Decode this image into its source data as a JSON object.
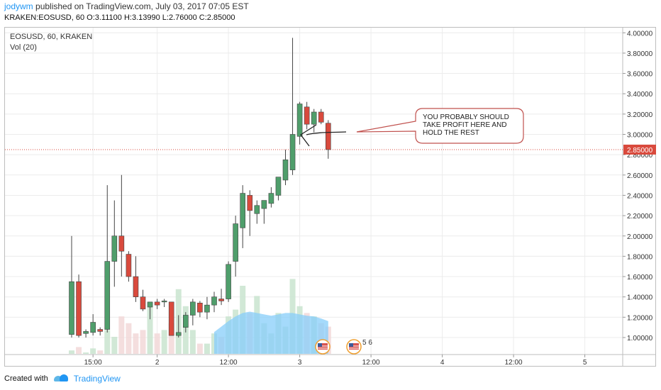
{
  "header": {
    "author": "jodywm",
    "published": " published on TradingView.com, July 03, 2017 07:05 EST",
    "ohlc": "KRAKEN:EOSUSD, 60  O:3.11100 H:3.13990 L:2.76000 C:2.85000"
  },
  "legend": {
    "symbol": "EOSUSD, 60, KRAKEN",
    "volume": "Vol (20)"
  },
  "annotation": {
    "text": "YOU PROBABLY SHOULD TAKE PROFIT HERE AND HOLD THE REST"
  },
  "events": {
    "count_label": "5 6"
  },
  "footer": {
    "created_with": "Created with",
    "brand": "TradingView"
  },
  "colors": {
    "up": "#4f9e6b",
    "down": "#d94a3d",
    "vol_up": "#c9e4cf",
    "vol_down": "#f2d8d8",
    "vol_ma": "#87cefa",
    "last_price_line": "#d94a3d",
    "callout_border": "#c0504d"
  },
  "chart_data": {
    "type": "candlestick",
    "y_ticks": [
      "4.00000",
      "3.80000",
      "3.60000",
      "3.40000",
      "3.20000",
      "3.00000",
      "2.80000",
      "2.60000",
      "2.40000",
      "2.20000",
      "2.00000",
      "1.80000",
      "1.60000",
      "1.40000",
      "1.20000",
      "1.00000"
    ],
    "ylim": [
      0.9,
      4.05
    ],
    "last_price": 2.85,
    "last_price_label": "2.85000",
    "x_ticks": [
      {
        "label": "15:00",
        "t": 3
      },
      {
        "label": "2",
        "t": 12
      },
      {
        "label": "12:00",
        "t": 22
      },
      {
        "label": "3",
        "t": 32
      },
      {
        "label": "12:00",
        "t": 42
      },
      {
        "label": "4",
        "t": 52
      },
      {
        "label": "12:00",
        "t": 62
      },
      {
        "label": "5",
        "t": 72
      }
    ],
    "candles": [
      {
        "t": 0,
        "o": 1.03,
        "h": 2.0,
        "l": 1.0,
        "c": 1.55
      },
      {
        "t": 1,
        "o": 1.55,
        "h": 1.62,
        "l": 1.0,
        "c": 1.02
      },
      {
        "t": 2,
        "o": 1.04,
        "h": 1.08,
        "l": 1.0,
        "c": 1.06
      },
      {
        "t": 3,
        "o": 1.05,
        "h": 1.23,
        "l": 1.02,
        "c": 1.15
      },
      {
        "t": 4,
        "o": 1.08,
        "h": 1.1,
        "l": 1.02,
        "c": 1.06
      },
      {
        "t": 5,
        "o": 1.08,
        "h": 2.5,
        "l": 1.05,
        "c": 1.75
      },
      {
        "t": 6,
        "o": 1.75,
        "h": 2.35,
        "l": 1.5,
        "c": 2.0
      },
      {
        "t": 7,
        "o": 2.0,
        "h": 2.6,
        "l": 1.6,
        "c": 1.85
      },
      {
        "t": 8,
        "o": 1.82,
        "h": 1.85,
        "l": 1.55,
        "c": 1.6
      },
      {
        "t": 9,
        "o": 1.6,
        "h": 1.8,
        "l": 1.35,
        "c": 1.4
      },
      {
        "t": 10,
        "o": 1.4,
        "h": 1.47,
        "l": 1.26,
        "c": 1.28
      },
      {
        "t": 11,
        "o": 1.3,
        "h": 1.35,
        "l": 1.18,
        "c": 1.35
      },
      {
        "t": 12,
        "o": 1.35,
        "h": 1.38,
        "l": 1.28,
        "c": 1.32
      },
      {
        "t": 13,
        "o": 1.35,
        "h": 1.38,
        "l": 1.3,
        "c": 1.36
      },
      {
        "t": 14,
        "o": 1.35,
        "h": 1.35,
        "l": 1.02,
        "c": 1.02
      },
      {
        "t": 15,
        "o": 1.02,
        "h": 1.22,
        "l": 1.0,
        "c": 1.05
      },
      {
        "t": 16,
        "o": 1.1,
        "h": 1.25,
        "l": 1.05,
        "c": 1.22
      },
      {
        "t": 17,
        "o": 1.22,
        "h": 1.38,
        "l": 1.12,
        "c": 1.35
      },
      {
        "t": 18,
        "o": 1.34,
        "h": 1.36,
        "l": 1.2,
        "c": 1.25
      },
      {
        "t": 19,
        "o": 1.25,
        "h": 1.4,
        "l": 1.18,
        "c": 1.32
      },
      {
        "t": 20,
        "o": 1.32,
        "h": 1.45,
        "l": 1.25,
        "c": 1.4
      },
      {
        "t": 21,
        "o": 1.38,
        "h": 1.48,
        "l": 1.32,
        "c": 1.36
      },
      {
        "t": 22,
        "o": 1.38,
        "h": 1.75,
        "l": 1.35,
        "c": 1.72
      },
      {
        "t": 23,
        "o": 1.75,
        "h": 2.2,
        "l": 1.6,
        "c": 2.12
      },
      {
        "t": 24,
        "o": 2.08,
        "h": 2.5,
        "l": 1.88,
        "c": 2.42
      },
      {
        "t": 25,
        "o": 2.4,
        "h": 2.45,
        "l": 2.0,
        "c": 2.25
      },
      {
        "t": 26,
        "o": 2.22,
        "h": 2.35,
        "l": 2.12,
        "c": 2.3
      },
      {
        "t": 27,
        "o": 2.27,
        "h": 2.33,
        "l": 2.12,
        "c": 2.35
      },
      {
        "t": 28,
        "o": 2.32,
        "h": 2.48,
        "l": 2.28,
        "c": 2.42
      },
      {
        "t": 29,
        "o": 2.4,
        "h": 2.55,
        "l": 2.35,
        "c": 2.58
      },
      {
        "t": 30,
        "o": 2.55,
        "h": 2.85,
        "l": 2.5,
        "c": 2.75
      },
      {
        "t": 31,
        "o": 2.65,
        "h": 3.95,
        "l": 2.6,
        "c": 3.0
      },
      {
        "t": 32,
        "o": 2.98,
        "h": 3.32,
        "l": 2.9,
        "c": 3.3
      },
      {
        "t": 33,
        "o": 3.27,
        "h": 3.32,
        "l": 3.05,
        "c": 3.1
      },
      {
        "t": 34,
        "o": 3.1,
        "h": 3.25,
        "l": 3.02,
        "c": 3.22
      },
      {
        "t": 35,
        "o": 3.22,
        "h": 3.25,
        "l": 3.1,
        "c": 3.12
      },
      {
        "t": 36,
        "o": 3.11,
        "h": 3.14,
        "l": 2.76,
        "c": 2.85
      }
    ],
    "volume": [
      {
        "t": 0,
        "v": 0.05,
        "up": true
      },
      {
        "t": 1,
        "v": 0.1,
        "up": false
      },
      {
        "t": 2,
        "v": 0.02,
        "up": true
      },
      {
        "t": 3,
        "v": 0.08,
        "up": true
      },
      {
        "t": 4,
        "v": 0.05,
        "up": false
      },
      {
        "t": 5,
        "v": 0.35,
        "up": true
      },
      {
        "t": 6,
        "v": 0.25,
        "up": true
      },
      {
        "t": 7,
        "v": 0.55,
        "up": false
      },
      {
        "t": 8,
        "v": 0.45,
        "up": false
      },
      {
        "t": 9,
        "v": 0.3,
        "up": false
      },
      {
        "t": 10,
        "v": 0.35,
        "up": false
      },
      {
        "t": 11,
        "v": 0.75,
        "up": true
      },
      {
        "t": 12,
        "v": 0.3,
        "up": false
      },
      {
        "t": 13,
        "v": 0.35,
        "up": true
      },
      {
        "t": 14,
        "v": 0.45,
        "up": false
      },
      {
        "t": 15,
        "v": 0.95,
        "up": true
      },
      {
        "t": 16,
        "v": 0.7,
        "up": true
      },
      {
        "t": 17,
        "v": 0.35,
        "up": true
      },
      {
        "t": 18,
        "v": 0.15,
        "up": false
      },
      {
        "t": 19,
        "v": 0.15,
        "up": true
      },
      {
        "t": 20,
        "v": 0.3,
        "up": true
      },
      {
        "t": 21,
        "v": 0.25,
        "up": false
      },
      {
        "t": 22,
        "v": 0.55,
        "up": true
      },
      {
        "t": 23,
        "v": 0.65,
        "up": true
      },
      {
        "t": 24,
        "v": 1.0,
        "up": true
      },
      {
        "t": 25,
        "v": 0.6,
        "up": false
      },
      {
        "t": 26,
        "v": 0.85,
        "up": true
      },
      {
        "t": 27,
        "v": 0.45,
        "up": true
      },
      {
        "t": 28,
        "v": 0.3,
        "up": true
      },
      {
        "t": 29,
        "v": 0.6,
        "up": true
      },
      {
        "t": 30,
        "v": 0.4,
        "up": true
      },
      {
        "t": 31,
        "v": 1.1,
        "up": true
      },
      {
        "t": 32,
        "v": 0.7,
        "up": true
      },
      {
        "t": 33,
        "v": 0.6,
        "up": false
      },
      {
        "t": 34,
        "v": 0.55,
        "up": true
      },
      {
        "t": 35,
        "v": 0.45,
        "up": false
      },
      {
        "t": 36,
        "v": 0.4,
        "up": false
      }
    ],
    "volume_ma": [
      {
        "t": 20,
        "v": 0.32
      },
      {
        "t": 21,
        "v": 0.4
      },
      {
        "t": 22,
        "v": 0.48
      },
      {
        "t": 23,
        "v": 0.55
      },
      {
        "t": 24,
        "v": 0.6
      },
      {
        "t": 25,
        "v": 0.62
      },
      {
        "t": 26,
        "v": 0.6
      },
      {
        "t": 27,
        "v": 0.58
      },
      {
        "t": 28,
        "v": 0.56
      },
      {
        "t": 29,
        "v": 0.58
      },
      {
        "t": 30,
        "v": 0.6
      },
      {
        "t": 31,
        "v": 0.6
      },
      {
        "t": 32,
        "v": 0.58
      },
      {
        "t": 33,
        "v": 0.56
      },
      {
        "t": 34,
        "v": 0.55
      },
      {
        "t": 35,
        "v": 0.52
      },
      {
        "t": 36,
        "v": 0.48
      }
    ],
    "events_t": [
      35,
      40
    ]
  }
}
